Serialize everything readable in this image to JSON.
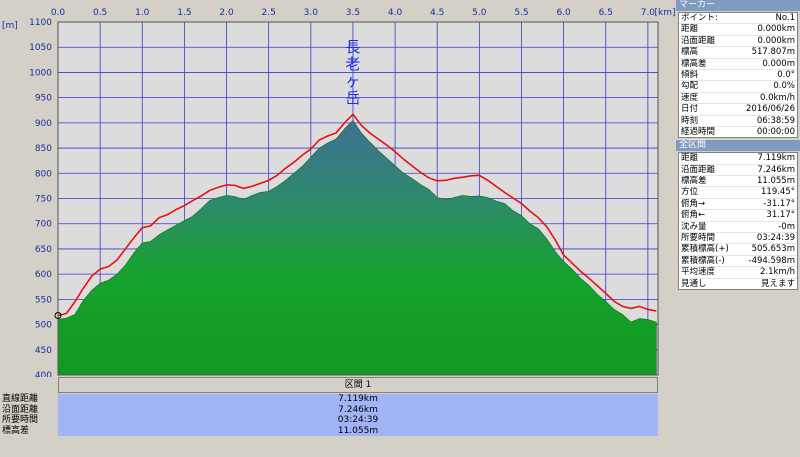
{
  "chart_data": {
    "type": "area",
    "xlabel": "",
    "ylabel": "",
    "x_unit": "[km]",
    "y_unit": "[m]",
    "xlim": [
      0,
      7.12
    ],
    "ylim": [
      400,
      1100
    ],
    "x_ticks": [
      "0.0",
      "0.5",
      "1.0",
      "1.5",
      "2.0",
      "2.5",
      "3.0",
      "3.5",
      "4.0",
      "4.5",
      "5.0",
      "5.5",
      "6.0",
      "6.5",
      "7.0"
    ],
    "y_ticks": [
      "1100",
      "1050",
      "1000",
      "950",
      "900",
      "850",
      "800",
      "750",
      "700",
      "650",
      "600",
      "550",
      "500",
      "450",
      "400"
    ],
    "grid": true,
    "annotation": {
      "text": "長老ヶ岳",
      "x": 3.5,
      "y": 917
    },
    "series": [
      {
        "name": "",
        "style": "filled-area",
        "color": "#1e9a2e",
        "x": [
          0,
          0.1,
          0.2,
          0.3,
          0.4,
          0.5,
          0.6,
          0.7,
          0.8,
          0.9,
          1.0,
          1.1,
          1.2,
          1.3,
          1.4,
          1.5,
          1.6,
          1.7,
          1.8,
          1.9,
          2.0,
          2.1,
          2.2,
          2.3,
          2.4,
          2.5,
          2.6,
          2.7,
          2.8,
          2.9,
          3.0,
          3.1,
          3.2,
          3.3,
          3.4,
          3.5,
          3.6,
          3.7,
          3.8,
          3.9,
          4.0,
          4.1,
          4.2,
          4.3,
          4.4,
          4.5,
          4.6,
          4.7,
          4.8,
          4.9,
          5.0,
          5.1,
          5.2,
          5.3,
          5.4,
          5.5,
          5.6,
          5.7,
          5.8,
          5.9,
          6.0,
          6.1,
          6.2,
          6.3,
          6.4,
          6.5,
          6.6,
          6.7,
          6.8,
          6.9,
          7.0,
          7.1
        ],
        "y": [
          510,
          513,
          520,
          548,
          568,
          582,
          588,
          600,
          618,
          642,
          662,
          665,
          678,
          688,
          697,
          706,
          715,
          730,
          746,
          752,
          756,
          754,
          748,
          756,
          762,
          764,
          774,
          786,
          800,
          814,
          832,
          850,
          860,
          868,
          888,
          905,
          880,
          862,
          845,
          830,
          815,
          800,
          790,
          778,
          768,
          752,
          748,
          752,
          756,
          754,
          755,
          752,
          745,
          740,
          726,
          716,
          700,
          690,
          670,
          645,
          625,
          610,
          592,
          578,
          560,
          546,
          530,
          520,
          505,
          512,
          510,
          505
        ]
      },
      {
        "name": "",
        "style": "line",
        "color": "#e81010",
        "x": [
          0,
          0.1,
          0.2,
          0.3,
          0.4,
          0.5,
          0.6,
          0.7,
          0.8,
          0.9,
          1.0,
          1.1,
          1.2,
          1.3,
          1.4,
          1.5,
          1.6,
          1.7,
          1.8,
          1.9,
          2.0,
          2.1,
          2.2,
          2.3,
          2.4,
          2.5,
          2.6,
          2.7,
          2.8,
          2.9,
          3.0,
          3.1,
          3.2,
          3.3,
          3.4,
          3.5,
          3.6,
          3.7,
          3.8,
          3.9,
          4.0,
          4.1,
          4.2,
          4.3,
          4.4,
          4.5,
          4.6,
          4.7,
          4.8,
          4.9,
          5.0,
          5.1,
          5.2,
          5.3,
          5.4,
          5.5,
          5.6,
          5.7,
          5.8,
          5.9,
          6.0,
          6.1,
          6.2,
          6.3,
          6.4,
          6.5,
          6.6,
          6.7,
          6.8,
          6.9,
          7.0,
          7.1
        ],
        "y": [
          518,
          522,
          545,
          572,
          596,
          610,
          615,
          628,
          650,
          672,
          692,
          696,
          712,
          718,
          728,
          736,
          746,
          755,
          766,
          772,
          777,
          776,
          770,
          774,
          780,
          786,
          796,
          810,
          822,
          836,
          848,
          866,
          874,
          880,
          900,
          917,
          895,
          880,
          868,
          856,
          843,
          828,
          815,
          802,
          791,
          785,
          786,
          790,
          792,
          795,
          796,
          786,
          774,
          762,
          751,
          740,
          725,
          712,
          694,
          668,
          638,
          622,
          606,
          592,
          577,
          562,
          546,
          536,
          532,
          536,
          530,
          527
        ]
      }
    ]
  },
  "marker_panel": {
    "title": "マーカー",
    "rows": [
      {
        "label": "ポイント:",
        "value": "No.1"
      },
      {
        "label": "距離",
        "value": "0.000km"
      },
      {
        "label": "沿面距離",
        "value": "0.000km"
      },
      {
        "label": "標高",
        "value": "517.807m"
      },
      {
        "label": "標高差",
        "value": "0.000m"
      },
      {
        "label": "傾斜",
        "value": "0.0°"
      },
      {
        "label": "勾配",
        "value": "0.0%"
      },
      {
        "label": "速度",
        "value": "0.0km/h"
      },
      {
        "label": "日付",
        "value": "2016/06/26"
      },
      {
        "label": "時刻",
        "value": "06:38:59"
      },
      {
        "label": "経過時間",
        "value": "00:00:00"
      }
    ]
  },
  "total_panel": {
    "title": "全区間",
    "rows": [
      {
        "label": "距離",
        "value": "7.119km"
      },
      {
        "label": "沿面距離",
        "value": "7.246km"
      },
      {
        "label": "標高差",
        "value": "11.055m"
      },
      {
        "label": "方位",
        "value": "119.45°"
      },
      {
        "label": "俯角→",
        "value": "-31.17°"
      },
      {
        "label": "俯角←",
        "value": "31.17°"
      },
      {
        "label": "沈み量",
        "value": "-0m"
      },
      {
        "label": "所要時間",
        "value": "03:24:39"
      },
      {
        "label": "累積標高(+)",
        "value": "505.653m"
      },
      {
        "label": "累積標高(-)",
        "value": "-494.598m"
      },
      {
        "label": "平均速度",
        "value": "2.1km/h"
      },
      {
        "label": "見通し",
        "value": "見えます"
      }
    ]
  },
  "section": {
    "label": "区間 1",
    "rows": [
      {
        "label": "直線距離",
        "value": "7.119km"
      },
      {
        "label": "沿面距離",
        "value": "7.246km"
      },
      {
        "label": "所要時間",
        "value": "03:24:39"
      },
      {
        "label": "標高差",
        "value": "11.055m"
      }
    ]
  }
}
